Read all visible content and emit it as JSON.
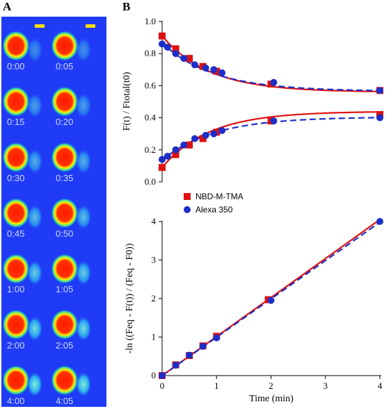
{
  "panel_a": {
    "label": "A",
    "times": [
      "0:00",
      "0:05",
      "0:15",
      "0:20",
      "0:30",
      "0:35",
      "0:45",
      "0:50",
      "1:00",
      "1:05",
      "2:00",
      "2:05",
      "4:00",
      "4:05"
    ],
    "background_color": "#1f3bf5",
    "scalebar_color": "#ffe000"
  },
  "panel_b": {
    "label": "B"
  },
  "chart_data": [
    {
      "type": "line",
      "title": "",
      "xlabel": "",
      "ylabel": "F(t) / Ftotal(t0)",
      "xlim": [
        0,
        4
      ],
      "ylim": [
        0,
        1.0
      ],
      "yticks": [
        "0.0",
        "0.2",
        "0.4",
        "0.6",
        "0.8",
        "1.0"
      ],
      "series": [
        {
          "name": "NBD-M-TMA",
          "marker": "square",
          "color": "#dd1111",
          "line": "solid",
          "x": [
            0,
            0.25,
            0.5,
            0.75,
            1.0,
            2.0,
            4.0
          ],
          "y": [
            0.91,
            0.83,
            0.77,
            0.72,
            0.69,
            0.61,
            0.57
          ]
        },
        {
          "name": "NBD-M-TMA",
          "marker": "square",
          "color": "#dd1111",
          "line": "solid",
          "x": [
            0,
            0.25,
            0.5,
            0.75,
            1.0,
            2.0,
            4.0
          ],
          "y": [
            0.09,
            0.17,
            0.23,
            0.27,
            0.31,
            0.38,
            0.42
          ]
        },
        {
          "name": "Alexa 350",
          "marker": "circle",
          "color": "#1d2ec9",
          "line": "dashed",
          "x": [
            0,
            0.1,
            0.25,
            0.4,
            0.6,
            0.8,
            0.95,
            1.1,
            2.05,
            4.0
          ],
          "y": [
            0.86,
            0.84,
            0.8,
            0.77,
            0.73,
            0.71,
            0.7,
            0.68,
            0.62,
            0.57
          ]
        },
        {
          "name": "Alexa 350",
          "marker": "circle",
          "color": "#1d2ec9",
          "line": "dashed",
          "x": [
            0,
            0.1,
            0.25,
            0.4,
            0.6,
            0.8,
            0.95,
            1.1,
            2.05,
            4.0
          ],
          "y": [
            0.14,
            0.16,
            0.2,
            0.23,
            0.27,
            0.29,
            0.3,
            0.32,
            0.38,
            0.4
          ]
        }
      ]
    },
    {
      "type": "line",
      "title": "",
      "xlabel": "Time (min)",
      "ylabel": "-ln ((Feq - F(t)) / (Feq - F0))",
      "xlim": [
        0,
        4
      ],
      "ylim": [
        0,
        4
      ],
      "xticks": [
        "0",
        "1",
        "2",
        "3",
        "4"
      ],
      "yticks": [
        "0",
        "1",
        "2",
        "3",
        "4"
      ],
      "legend": {
        "placement": "top-left",
        "entries": [
          "NBD-M-TMA",
          "Alexa 350"
        ]
      },
      "series": [
        {
          "name": "NBD-M-TMA",
          "marker": "square",
          "color": "#dd1111",
          "line": "solid",
          "x": [
            0,
            0.25,
            0.5,
            0.75,
            1.0,
            1.95
          ],
          "y": [
            0,
            0.28,
            0.52,
            0.77,
            1.02,
            1.97
          ],
          "fit": {
            "x": [
              0,
              4
            ],
            "y": [
              0,
              4.05
            ]
          }
        },
        {
          "name": "Alexa 350",
          "marker": "circle",
          "color": "#1d2ec9",
          "line": "dashed",
          "x": [
            0,
            0.25,
            0.5,
            0.75,
            1.0,
            2.0,
            4.0
          ],
          "y": [
            0,
            0.27,
            0.53,
            0.76,
            0.98,
            1.95,
            4.0
          ],
          "fit": {
            "x": [
              0,
              4
            ],
            "y": [
              0,
              3.98
            ]
          }
        }
      ]
    }
  ]
}
